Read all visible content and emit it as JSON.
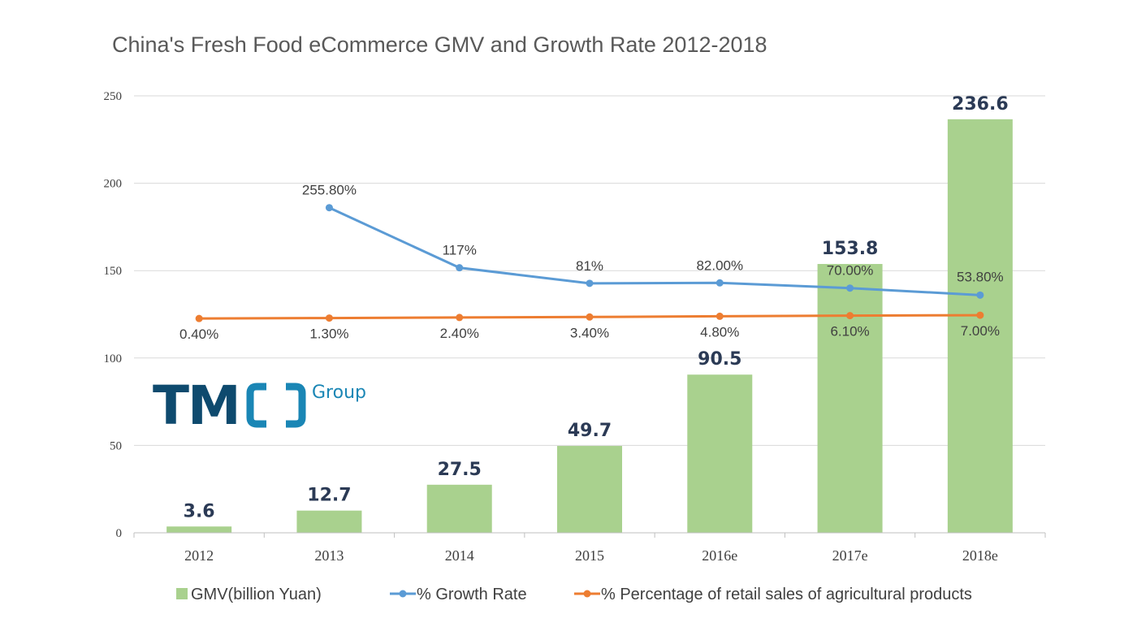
{
  "logo": {
    "main": "TM",
    "sub": "Group"
  },
  "chart_data": {
    "type": "bar",
    "title": "China's Fresh Food eCommerce GMV and Growth Rate 2012-2018",
    "categories": [
      "2012",
      "2013",
      "2014",
      "2015",
      "2016e",
      "2017e",
      "2018e"
    ],
    "ylim": [
      0,
      250
    ],
    "yticks": [
      "0",
      "50",
      "100",
      "150",
      "200",
      "250"
    ],
    "grid": true,
    "legend_position": "bottom",
    "series": [
      {
        "name": "GMV(billion Yuan)",
        "type": "bar",
        "color": "#a9d18e",
        "values": [
          3.6,
          12.7,
          27.5,
          49.7,
          90.5,
          153.8,
          236.6
        ],
        "labels": [
          "3.6",
          "12.7",
          "27.5",
          "49.7",
          "90.5",
          "153.8",
          "236.6"
        ]
      },
      {
        "name": "% Growth Rate",
        "type": "line",
        "color": "#5b9bd5",
        "values": [
          null,
          255.8,
          117,
          81,
          82,
          70,
          53.8
        ],
        "labels": [
          "",
          "255.80%",
          "117%",
          "81%",
          "82.00%",
          "70.00%",
          "53.80%"
        ]
      },
      {
        "name": "% Percentage of retail sales of agricultural products",
        "type": "line",
        "color": "#ed7d31",
        "values": [
          0.4,
          1.3,
          2.4,
          3.4,
          4.8,
          6.1,
          7.0
        ],
        "labels": [
          "0.40%",
          "1.30%",
          "2.40%",
          "3.40%",
          "4.80%",
          "6.10%",
          "7.00%"
        ]
      }
    ]
  }
}
